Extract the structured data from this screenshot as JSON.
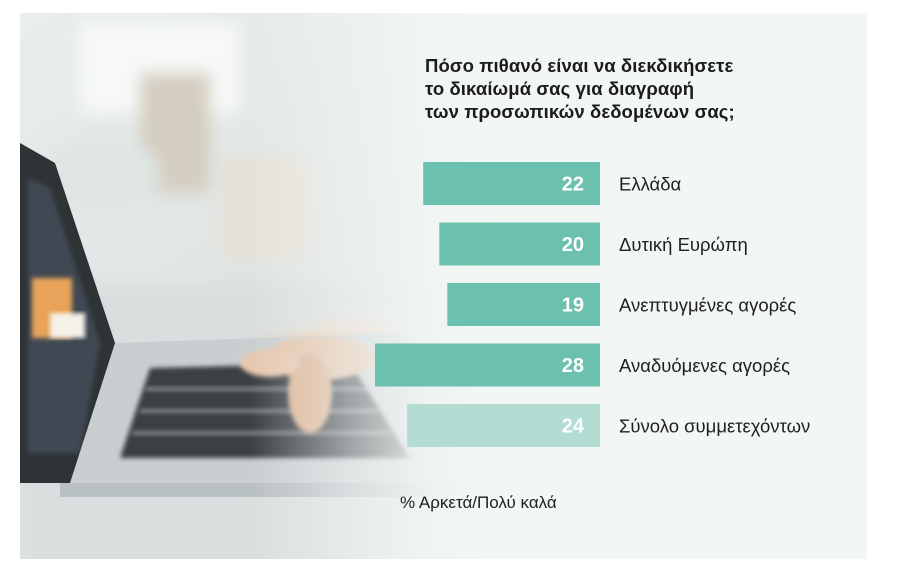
{
  "chart_data": {
    "type": "bar",
    "orientation": "horizontal",
    "title_lines": [
      "Πόσο πιθανό είναι να διεκδικήσετε",
      "το δικαίωμά σας για διαγραφή",
      "των προσωπικών δεδομένων σας;"
    ],
    "categories": [
      "Ελλάδα",
      "Δυτική Ευρώπη",
      "Ανεπτυγμένες αγορές",
      "Αναδυόμενες αγορές",
      "Σύνολο συμμετεχόντων"
    ],
    "values": [
      22,
      20,
      19,
      28,
      24
    ],
    "unit_note": "% Αρκετά/Πολύ καλά",
    "colors": [
      "#6cc0ae",
      "#6cc0ae",
      "#6cc0ae",
      "#6cc0ae",
      "#b3ddd3"
    ],
    "value_label_color": "#ffffff",
    "xlim": [
      0,
      28
    ],
    "grid": false,
    "legend": "none"
  }
}
